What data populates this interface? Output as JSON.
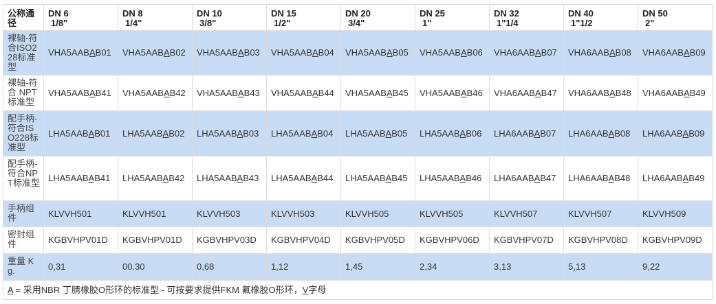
{
  "table": {
    "corner_header": "公称通径",
    "columns": [
      {
        "dn": "DN 6",
        "inch": "1/8\""
      },
      {
        "dn": "DN 8",
        "inch": "1/4\""
      },
      {
        "dn": "DN 10",
        "inch": "3/8\""
      },
      {
        "dn": "DN 15",
        "inch": "1/2\""
      },
      {
        "dn": "DN 20",
        "inch": "3/4\""
      },
      {
        "dn": "DN 25",
        "inch": "1\""
      },
      {
        "dn": "DN 32",
        "inch": "1\"1/4"
      },
      {
        "dn": "DN 40",
        "inch": "1\"1/2"
      },
      {
        "dn": "DN 50",
        "inch": "2\""
      }
    ],
    "rows": [
      {
        "label": "裸轴-符合ISO228标准型",
        "blue": true,
        "underline_index": 7,
        "values": [
          "VHA5AABAB01",
          "VHA5AABAB02",
          "VHA5AABAB03",
          "VHA5AABAB04",
          "VHA5AABAB05",
          "VHA5AABAB06",
          "VHA6AABAB07",
          "VHA6AABAB08",
          "VHA6AABAB09"
        ]
      },
      {
        "label": "裸轴-符合 NPT标准型",
        "blue": false,
        "underline_index": 7,
        "values": [
          "VHA5AABAB41",
          "VHA5AABAB42",
          "VHA5AABAB43",
          "VHA5AABAB44",
          "VHA5AABAB45",
          "VHA5AABAB46",
          "VHA6AABAB47",
          "VHA6AABAB48",
          "VHA6AABAB49"
        ]
      },
      {
        "label": "配手柄-符合ISO228标准型",
        "blue": true,
        "underline_index": 7,
        "values": [
          "LHA5AABAB01",
          "LHA5AABAB02",
          "LHA5AABAB03",
          "LHA5AABAB04",
          "LHA5AABAB05",
          "LHA5AABAB06",
          "LHA6AABAB07",
          "LHA6AABAB08",
          "LHA6AABAB09"
        ]
      },
      {
        "label": "配手柄-符合NPT标准型",
        "blue": false,
        "underline_index": 7,
        "values": [
          "LHA5AABAB41",
          "LHA5AABAB42",
          "LHA5AABAB43",
          "LHA5AABAB44",
          "LHA5AABAB45",
          "LHA5AABAB46",
          "LHA6AABAB47",
          "LHA6AABAB48",
          "LHA6AABAB49"
        ]
      },
      {
        "label": "手柄组件",
        "blue": true,
        "values": [
          "KLVVH501",
          "KLVVH501",
          "KLVVH503",
          "KLVVH503",
          "KLVVH505",
          "KLVVH505",
          "KLVVH507",
          "KLVVH507",
          "KLVVH509"
        ]
      },
      {
        "label": "密封组件",
        "blue": false,
        "values": [
          "KGBVHPV01D",
          "KGBVHPV01D",
          "KGBVHPV03D",
          "KGBVHPV04D",
          "KGBVHPV05D",
          "KGBVHPV06D",
          "KGBVHPV07D",
          "KGBVHPV08D",
          "KGBVHPV09D"
        ]
      },
      {
        "label": "重量 Kg.",
        "blue": true,
        "values": [
          "0,31",
          "00.30",
          "0,68",
          "1,12",
          "1,45",
          "2,34",
          "3,13",
          "5,13",
          "9,22"
        ]
      }
    ],
    "footnote": {
      "a_letter": "A",
      "text": " = 采用NBR 丁腈橡胶O形环的标准型 - 可按要求提供FKM 氟橡胶O形环，",
      "v_letter": "V",
      "suffix": "字母"
    }
  },
  "colors": {
    "row_highlight": "#c9dcf5",
    "border": "#dcdcdc",
    "text": "#333333"
  }
}
